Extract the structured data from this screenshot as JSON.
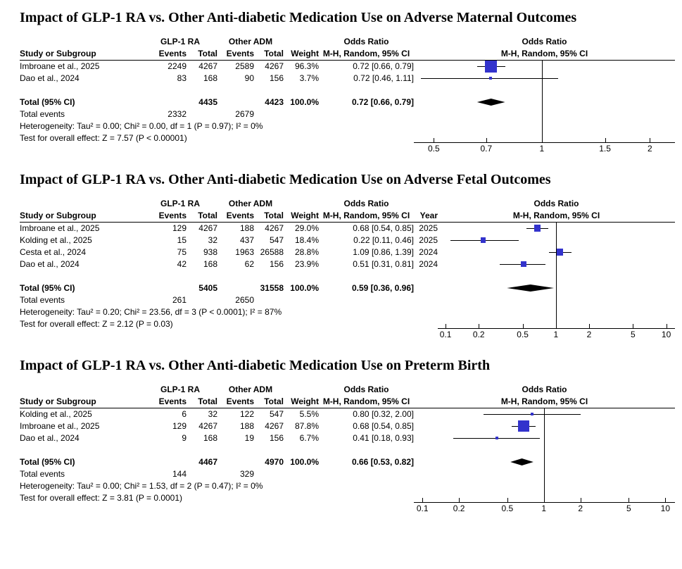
{
  "colors": {
    "marker": "#3333cc",
    "diamond": "#000000",
    "line": "#000000"
  },
  "chart_data": [
    {
      "type": "forest_plot",
      "effect_measure": "Odds Ratio, M-H, Random, 95% CI",
      "title": "Impact of GLP-1 RA vs. Other Anti-diabetic Medication Use on Adverse Maternal Outcomes",
      "headers": {
        "group1": "GLP-1 RA",
        "group2": "Other ADM",
        "study": "Study or Subgroup",
        "events": "Events",
        "total": "Total",
        "weight": "Weight",
        "or_title": "Odds Ratio",
        "ci_method": "M-H, Random, 95% CI"
      },
      "rows": [
        {
          "study": "Imbroane et al., 2025",
          "events1": "2249",
          "total1": "4267",
          "events2": "2589",
          "total2": "4267",
          "weight": "96.3%",
          "ci": "0.72 [0.66, 0.79]",
          "or": 0.72,
          "low": 0.66,
          "high": 0.79,
          "weight_value": 96.3
        },
        {
          "study": "Dao et al., 2024",
          "events1": "83",
          "total1": "168",
          "events2": "90",
          "total2": "156",
          "weight": "3.7%",
          "ci": "0.72 [0.46, 1.11]",
          "or": 0.72,
          "low": 0.46,
          "high": 1.11,
          "weight_value": 3.7
        }
      ],
      "total_row": {
        "label": "Total (95% CI)",
        "total1": "4435",
        "total2": "4423",
        "weight": "100.0%",
        "ci": "0.72 [0.66, 0.79]",
        "or": 0.72,
        "low": 0.66,
        "high": 0.79
      },
      "total_events": {
        "label": "Total events",
        "events1": "2332",
        "events2": "2679"
      },
      "heterogeneity": "Heterogeneity: Tau² = 0.00; Chi² = 0.00, df = 1 (P = 0.97); I² = 0%",
      "overall_effect": "Test for overall effect: Z = 7.57 (P < 0.00001)",
      "axis": {
        "scale": "log",
        "min": 0.44,
        "max": 2.35,
        "ticks": [
          0.5,
          0.7,
          1,
          1.5,
          2
        ]
      }
    },
    {
      "type": "forest_plot",
      "effect_measure": "Odds Ratio, M-H, Random, 95% CI",
      "title": "Impact of GLP-1 RA vs. Other Anti-diabetic Medication Use on Adverse Fetal Outcomes",
      "headers": {
        "group1": "GLP-1 RA",
        "group2": "Other ADM",
        "study": "Study or Subgroup",
        "events": "Events",
        "total": "Total",
        "weight": "Weight",
        "or_title": "Odds Ratio",
        "ci_method": "M-H, Random, 95% CI",
        "year": "Year"
      },
      "rows": [
        {
          "study": "Imbroane et al., 2025",
          "events1": "129",
          "total1": "4267",
          "events2": "188",
          "total2": "4267",
          "weight": "29.0%",
          "ci": "0.68 [0.54, 0.85]",
          "year": "2025",
          "or": 0.68,
          "low": 0.54,
          "high": 0.85,
          "weight_value": 29.0
        },
        {
          "study": "Kolding et al., 2025",
          "events1": "15",
          "total1": "32",
          "events2": "437",
          "total2": "547",
          "weight": "18.4%",
          "ci": "0.22 [0.11, 0.46]",
          "year": "2025",
          "or": 0.22,
          "low": 0.11,
          "high": 0.46,
          "weight_value": 18.4
        },
        {
          "study": "Cesta et al., 2024",
          "events1": "75",
          "total1": "938",
          "events2": "1963",
          "total2": "26588",
          "weight": "28.8%",
          "ci": "1.09 [0.86, 1.39]",
          "year": "2024",
          "or": 1.09,
          "low": 0.86,
          "high": 1.39,
          "weight_value": 28.8
        },
        {
          "study": "Dao et al., 2024",
          "events1": "42",
          "total1": "168",
          "events2": "62",
          "total2": "156",
          "weight": "23.9%",
          "ci": "0.51 [0.31, 0.81]",
          "year": "2024",
          "or": 0.51,
          "low": 0.31,
          "high": 0.81,
          "weight_value": 23.9
        }
      ],
      "total_row": {
        "label": "Total (95% CI)",
        "total1": "5405",
        "total2": "31558",
        "weight": "100.0%",
        "ci": "0.59 [0.36, 0.96]",
        "or": 0.59,
        "low": 0.36,
        "high": 0.96
      },
      "total_events": {
        "label": "Total events",
        "events1": "261",
        "events2": "2650"
      },
      "heterogeneity": "Heterogeneity: Tau² = 0.20; Chi² = 23.56, df = 3 (P < 0.0001); I² = 87%",
      "overall_effect": "Test for overall effect: Z = 2.12 (P = 0.03)",
      "axis": {
        "scale": "log",
        "min": 0.085,
        "max": 12,
        "ticks": [
          0.1,
          0.2,
          0.5,
          1,
          2,
          5,
          10
        ]
      }
    },
    {
      "type": "forest_plot",
      "effect_measure": "Odds Ratio, M-H, Random, 95% CI",
      "title": "Impact of GLP-1 RA vs. Other Anti-diabetic Medication Use on Preterm Birth",
      "headers": {
        "group1": "GLP-1 RA",
        "group2": "Other ADM",
        "study": "Study or Subgroup",
        "events": "Events",
        "total": "Total",
        "weight": "Weight",
        "or_title": "Odds Ratio",
        "ci_method": "M-H, Random, 95% CI"
      },
      "rows": [
        {
          "study": "Kolding et al., 2025",
          "events1": "6",
          "total1": "32",
          "events2": "122",
          "total2": "547",
          "weight": "5.5%",
          "ci": "0.80 [0.32, 2.00]",
          "or": 0.8,
          "low": 0.32,
          "high": 2.0,
          "weight_value": 5.5
        },
        {
          "study": "Imbroane et al., 2025",
          "events1": "129",
          "total1": "4267",
          "events2": "188",
          "total2": "4267",
          "weight": "87.8%",
          "ci": "0.68 [0.54, 0.85]",
          "or": 0.68,
          "low": 0.54,
          "high": 0.85,
          "weight_value": 87.8
        },
        {
          "study": "Dao et al., 2024",
          "events1": "9",
          "total1": "168",
          "events2": "19",
          "total2": "156",
          "weight": "6.7%",
          "ci": "0.41 [0.18, 0.93]",
          "or": 0.41,
          "low": 0.18,
          "high": 0.93,
          "weight_value": 6.7
        }
      ],
      "total_row": {
        "label": "Total (95% CI)",
        "total1": "4467",
        "total2": "4970",
        "weight": "100.0%",
        "ci": "0.66 [0.53, 0.82]",
        "or": 0.66,
        "low": 0.53,
        "high": 0.82
      },
      "total_events": {
        "label": "Total events",
        "events1": "144",
        "events2": "329"
      },
      "heterogeneity": "Heterogeneity: Tau² = 0.00; Chi² = 1.53, df = 2 (P = 0.47); I² = 0%",
      "overall_effect": "Test for overall effect: Z = 3.81 (P = 0.0001)",
      "axis": {
        "scale": "log",
        "min": 0.085,
        "max": 12,
        "ticks": [
          0.1,
          0.2,
          0.5,
          1,
          2,
          5,
          10
        ]
      }
    }
  ]
}
